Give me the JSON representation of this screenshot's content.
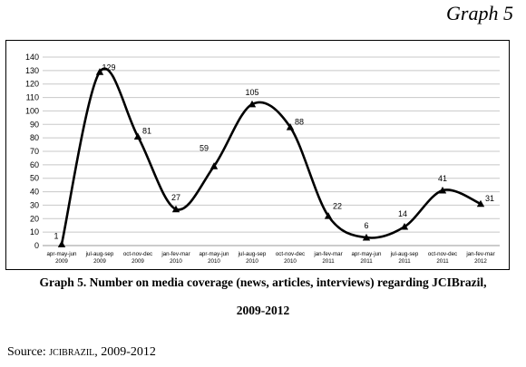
{
  "heading": "Graph 5",
  "caption": {
    "line1": "Graph 5.  Number on media coverage (news, articles, interviews) regarding JCIBrazil,",
    "line2": "2009-2012"
  },
  "source": {
    "prefix": "Source: ",
    "org": "JCIBrazil",
    "suffix": ", 2009-2012"
  },
  "chart_data": {
    "type": "line",
    "categories": [
      [
        "apr-may-jun",
        "2009"
      ],
      [
        "jul-aug-sep",
        "2009"
      ],
      [
        "oct-nov-dec",
        "2009"
      ],
      [
        "jan-fev-mar",
        "2010"
      ],
      [
        "apr-may-jun",
        "2010"
      ],
      [
        "jul-aug-sep",
        "2010"
      ],
      [
        "oct-nov-dec",
        "2010"
      ],
      [
        "jan-fev-mar",
        "2011"
      ],
      [
        "apr-may-jun",
        "2011"
      ],
      [
        "jul-aug-sep",
        "2011"
      ],
      [
        "oct-nov-dec",
        "2011"
      ],
      [
        "jan-fev-mar",
        "2012"
      ]
    ],
    "values": [
      1,
      129,
      81,
      27,
      59,
      105,
      88,
      22,
      6,
      14,
      41,
      31
    ],
    "data_labels": [
      "1",
      "129",
      "81",
      "27",
      "59",
      "105",
      "88",
      "22",
      "6",
      "14",
      "41",
      "31"
    ],
    "yticks": [
      "0",
      "10",
      "20",
      "30",
      "40",
      "50",
      "60",
      "70",
      "80",
      "90",
      "100",
      "110",
      "120",
      "130",
      "140"
    ],
    "ylim": [
      0,
      140
    ],
    "grid": true,
    "smooth": true,
    "marker": "triangle",
    "line_color": "#000000",
    "grid_color": "#c8c8c8"
  }
}
